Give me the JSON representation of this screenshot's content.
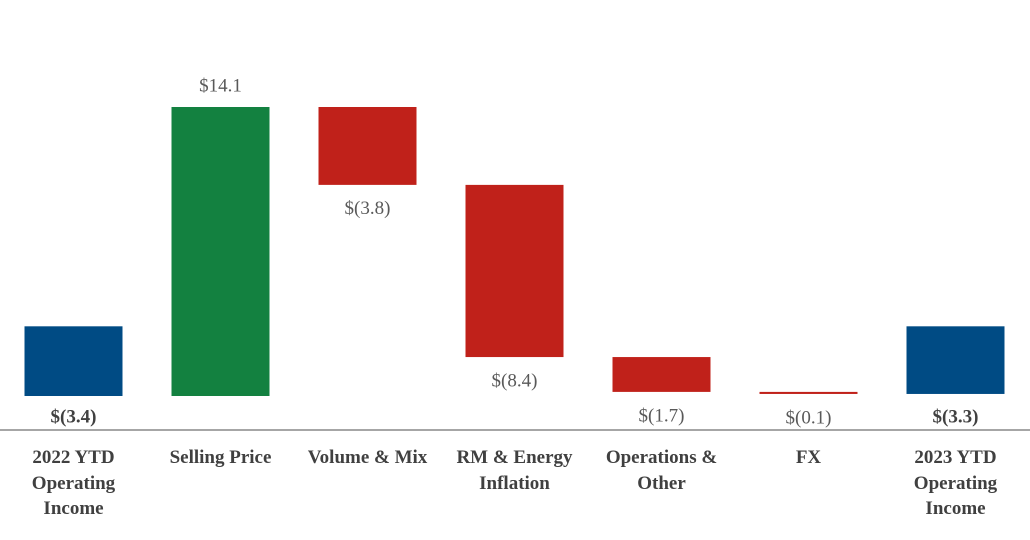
{
  "chart_data": {
    "type": "waterfall",
    "categories": [
      "2022 YTD Operating Income",
      "Selling Price",
      "Volume & Mix",
      "RM & Energy Inflation",
      "Operations & Other",
      "FX",
      "2023 YTD Operating Income"
    ],
    "measures": [
      "total",
      "relative",
      "relative",
      "relative",
      "relative",
      "relative",
      "total"
    ],
    "values": [
      -3.4,
      14.1,
      -3.8,
      -8.4,
      -1.7,
      -0.1,
      -3.3
    ],
    "value_labels": [
      "$(3.4)",
      "$14.1",
      "$(3.8)",
      "$(8.4)",
      "$(1.7)",
      "$(0.1)",
      "$(3.3)"
    ],
    "total_color": "#004b84",
    "increase_color": "#138140",
    "decrease_color": "#c0211a"
  }
}
